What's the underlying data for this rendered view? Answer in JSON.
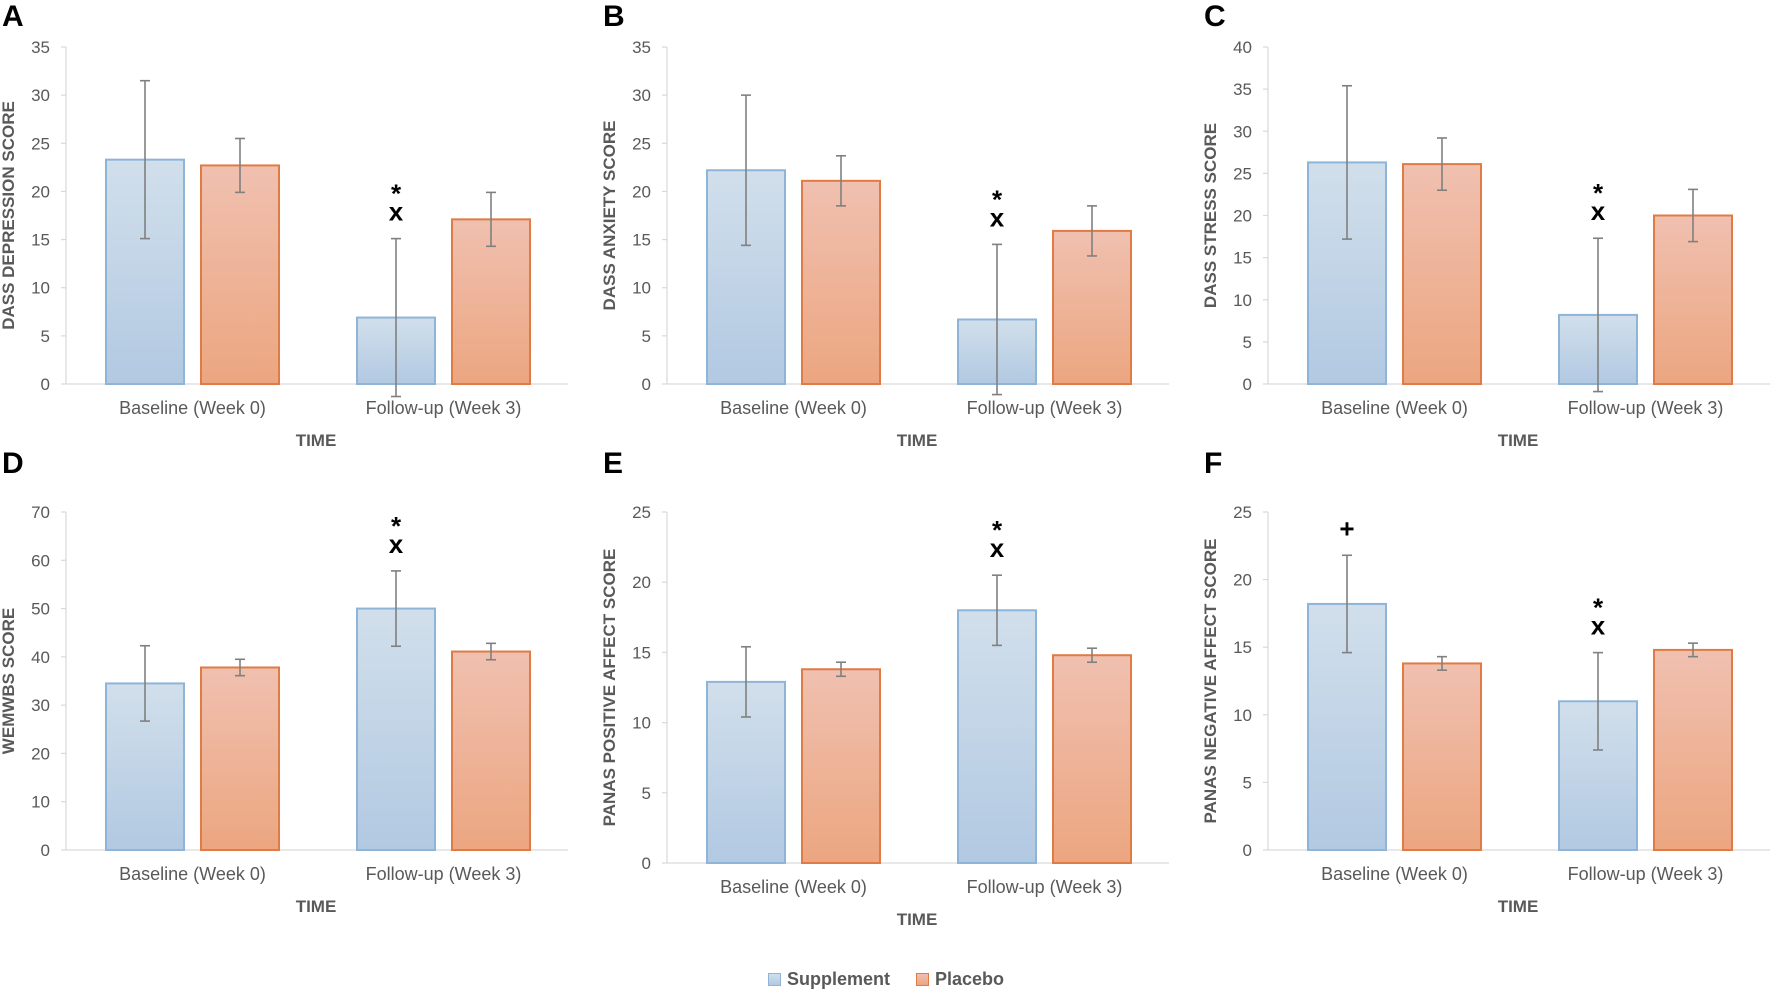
{
  "legend": {
    "series": [
      {
        "name": "Supplement",
        "fill_top": "#d1dfeb",
        "fill_bottom": "#b2c9e2",
        "stroke": "#8eb4d8"
      },
      {
        "name": "Placebo",
        "fill_top": "#f0c0b0",
        "fill_bottom": "#eca680",
        "stroke": "#e07b45"
      }
    ]
  },
  "chart_data": [
    {
      "type": "bar",
      "panel": "A",
      "categories": [
        "Baseline (Week 0)",
        "Follow-up (Week 3)"
      ],
      "xlabel": "TIME",
      "ylabel": "DASS DEPRESSION SCORE",
      "ylim": [
        0,
        35
      ],
      "ticks": [
        0,
        5,
        10,
        15,
        20,
        25,
        30,
        35
      ],
      "series": [
        {
          "name": "Supplement",
          "values": [
            23.3,
            6.9
          ],
          "errors": [
            8.2,
            8.2
          ]
        },
        {
          "name": "Placebo",
          "values": [
            22.7,
            17.1
          ],
          "errors": [
            2.8,
            2.8
          ]
        }
      ],
      "annotations": [
        {
          "category": 1,
          "series": 0,
          "lines": [
            "*",
            "x"
          ]
        }
      ]
    },
    {
      "type": "bar",
      "panel": "B",
      "categories": [
        "Baseline (Week 0)",
        "Follow-up (Week 3)"
      ],
      "xlabel": "TIME",
      "ylabel": "DASS ANXIETY SCORE",
      "ylim": [
        0,
        35
      ],
      "ticks": [
        0,
        5,
        10,
        15,
        20,
        25,
        30,
        35
      ],
      "series": [
        {
          "name": "Supplement",
          "values": [
            22.2,
            6.7
          ],
          "errors": [
            7.8,
            7.8
          ]
        },
        {
          "name": "Placebo",
          "values": [
            21.1,
            15.9
          ],
          "errors": [
            2.6,
            2.6
          ]
        }
      ],
      "annotations": [
        {
          "category": 1,
          "series": 0,
          "lines": [
            "*",
            "x"
          ]
        }
      ]
    },
    {
      "type": "bar",
      "panel": "C",
      "categories": [
        "Baseline (Week 0)",
        "Follow-up (Week 3)"
      ],
      "xlabel": "TIME",
      "ylabel": "DASS STRESS SCORE",
      "ylim": [
        0,
        40
      ],
      "ticks": [
        0,
        5,
        10,
        15,
        20,
        25,
        30,
        35,
        40
      ],
      "series": [
        {
          "name": "Supplement",
          "values": [
            26.3,
            8.2
          ],
          "errors": [
            9.1,
            9.1
          ]
        },
        {
          "name": "Placebo",
          "values": [
            26.1,
            20.0
          ],
          "errors": [
            3.1,
            3.1
          ]
        }
      ],
      "annotations": [
        {
          "category": 1,
          "series": 0,
          "lines": [
            "*",
            "x"
          ]
        }
      ]
    },
    {
      "type": "bar",
      "panel": "D",
      "categories": [
        "Baseline (Week 0)",
        "Follow-up (Week 3)"
      ],
      "xlabel": "TIME",
      "ylabel": "WEMWBS SCORE",
      "ylim": [
        0,
        70
      ],
      "ticks": [
        0,
        10,
        20,
        30,
        40,
        50,
        60,
        70
      ],
      "series": [
        {
          "name": "Supplement",
          "values": [
            34.5,
            50.0
          ],
          "errors": [
            7.8,
            7.8
          ]
        },
        {
          "name": "Placebo",
          "values": [
            37.8,
            41.1
          ],
          "errors": [
            1.7,
            1.7
          ]
        }
      ],
      "annotations": [
        {
          "category": 1,
          "series": 0,
          "lines": [
            "*",
            "x"
          ]
        }
      ]
    },
    {
      "type": "bar",
      "panel": "E",
      "categories": [
        "Baseline (Week 0)",
        "Follow-up (Week 3)"
      ],
      "xlabel": "TIME",
      "ylabel": "PANAS POSITIVE AFFECT SCORE",
      "ylim": [
        0,
        25
      ],
      "ticks": [
        0,
        5,
        10,
        15,
        20,
        25
      ],
      "series": [
        {
          "name": "Supplement",
          "values": [
            12.9,
            18.0
          ],
          "errors": [
            2.5,
            2.5
          ]
        },
        {
          "name": "Placebo",
          "values": [
            13.8,
            14.8
          ],
          "errors": [
            0.5,
            0.5
          ]
        }
      ],
      "annotations": [
        {
          "category": 1,
          "series": 0,
          "lines": [
            "*",
            "x"
          ]
        }
      ]
    },
    {
      "type": "bar",
      "panel": "F",
      "categories": [
        "Baseline (Week 0)",
        "Follow-up (Week 3)"
      ],
      "xlabel": "TIME",
      "ylabel": "PANAS NEGATIVE AFFECT SCORE",
      "ylim": [
        0,
        25
      ],
      "ticks": [
        0,
        5,
        10,
        15,
        20,
        25
      ],
      "series": [
        {
          "name": "Supplement",
          "values": [
            18.2,
            11.0
          ],
          "errors": [
            3.6,
            3.6
          ]
        },
        {
          "name": "Placebo",
          "values": [
            13.8,
            14.8
          ],
          "errors": [
            0.5,
            0.5
          ]
        }
      ],
      "annotations": [
        {
          "category": 0,
          "series": 0,
          "lines": [
            "+"
          ]
        },
        {
          "category": 1,
          "series": 0,
          "lines": [
            "*",
            "x"
          ]
        }
      ]
    }
  ]
}
